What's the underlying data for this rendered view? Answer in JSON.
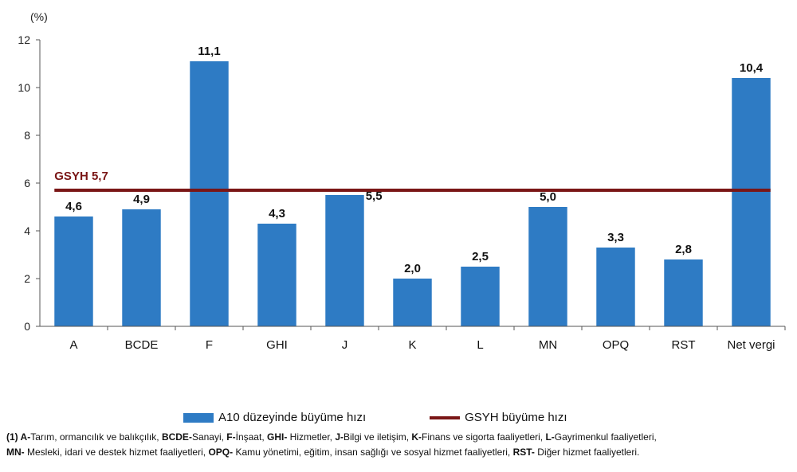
{
  "chart_data": {
    "type": "bar",
    "unit_label": "(%)",
    "categories": [
      "A",
      "BCDE",
      "F",
      "GHI",
      "J",
      "K",
      "L",
      "MN",
      "OPQ",
      "RST",
      "Net vergi"
    ],
    "series": [
      {
        "name": "A10 düzeyinde büyüme hızı",
        "values": [
          4.6,
          4.9,
          11.1,
          4.3,
          5.5,
          2.0,
          2.5,
          5.0,
          3.3,
          2.8,
          10.4
        ],
        "labels": [
          "4,6",
          "4,9",
          "11,1",
          "4,3",
          "5,5",
          "2,0",
          "2,5",
          "5,0",
          "3,3",
          "2,8",
          "10,4"
        ],
        "color": "#2e7bc4"
      }
    ],
    "reference_line": {
      "name": "GSYH büyüme hızı",
      "value": 5.7,
      "label": "GSYH 5,7",
      "color": "#7a1616"
    },
    "yticks": [
      0,
      2,
      4,
      6,
      8,
      10,
      12
    ],
    "ylim": [
      0,
      12
    ],
    "grid": false,
    "legend_position": "bottom"
  },
  "legend": {
    "bar_label": "A10 düzeyinde büyüme hızı",
    "line_label": "GSYH büyüme hızı"
  },
  "footnote": {
    "lines": [
      [
        {
          "t": "(1) A-",
          "b": true
        },
        {
          "t": "Tarım, ormancılık ve balıkçılık, ",
          "b": false
        },
        {
          "t": "BCDE-",
          "b": true
        },
        {
          "t": "Sanayi, ",
          "b": false
        },
        {
          "t": "F-",
          "b": true
        },
        {
          "t": "İnşaat, ",
          "b": false
        },
        {
          "t": "GHI-",
          "b": true
        },
        {
          "t": " Hizmetler, ",
          "b": false
        },
        {
          "t": "J-",
          "b": true
        },
        {
          "t": "Bilgi ve iletişim, ",
          "b": false
        },
        {
          "t": "K-",
          "b": true
        },
        {
          "t": "Finans ve sigorta faaliyetleri, ",
          "b": false
        },
        {
          "t": "L-",
          "b": true
        },
        {
          "t": "Gayrimenkul faaliyetleri,",
          "b": false
        }
      ],
      [
        {
          "t": "MN-",
          "b": true
        },
        {
          "t": " Mesleki, idari ve destek hizmet faaliyetleri, ",
          "b": false
        },
        {
          "t": "OPQ-",
          "b": true
        },
        {
          "t": " Kamu yönetimi, eğitim, insan sağlığı ve sosyal hizmet faaliyetleri, ",
          "b": false
        },
        {
          "t": "RST-",
          "b": true
        },
        {
          "t": " Diğer hizmet faaliyetleri.",
          "b": false
        }
      ]
    ]
  }
}
